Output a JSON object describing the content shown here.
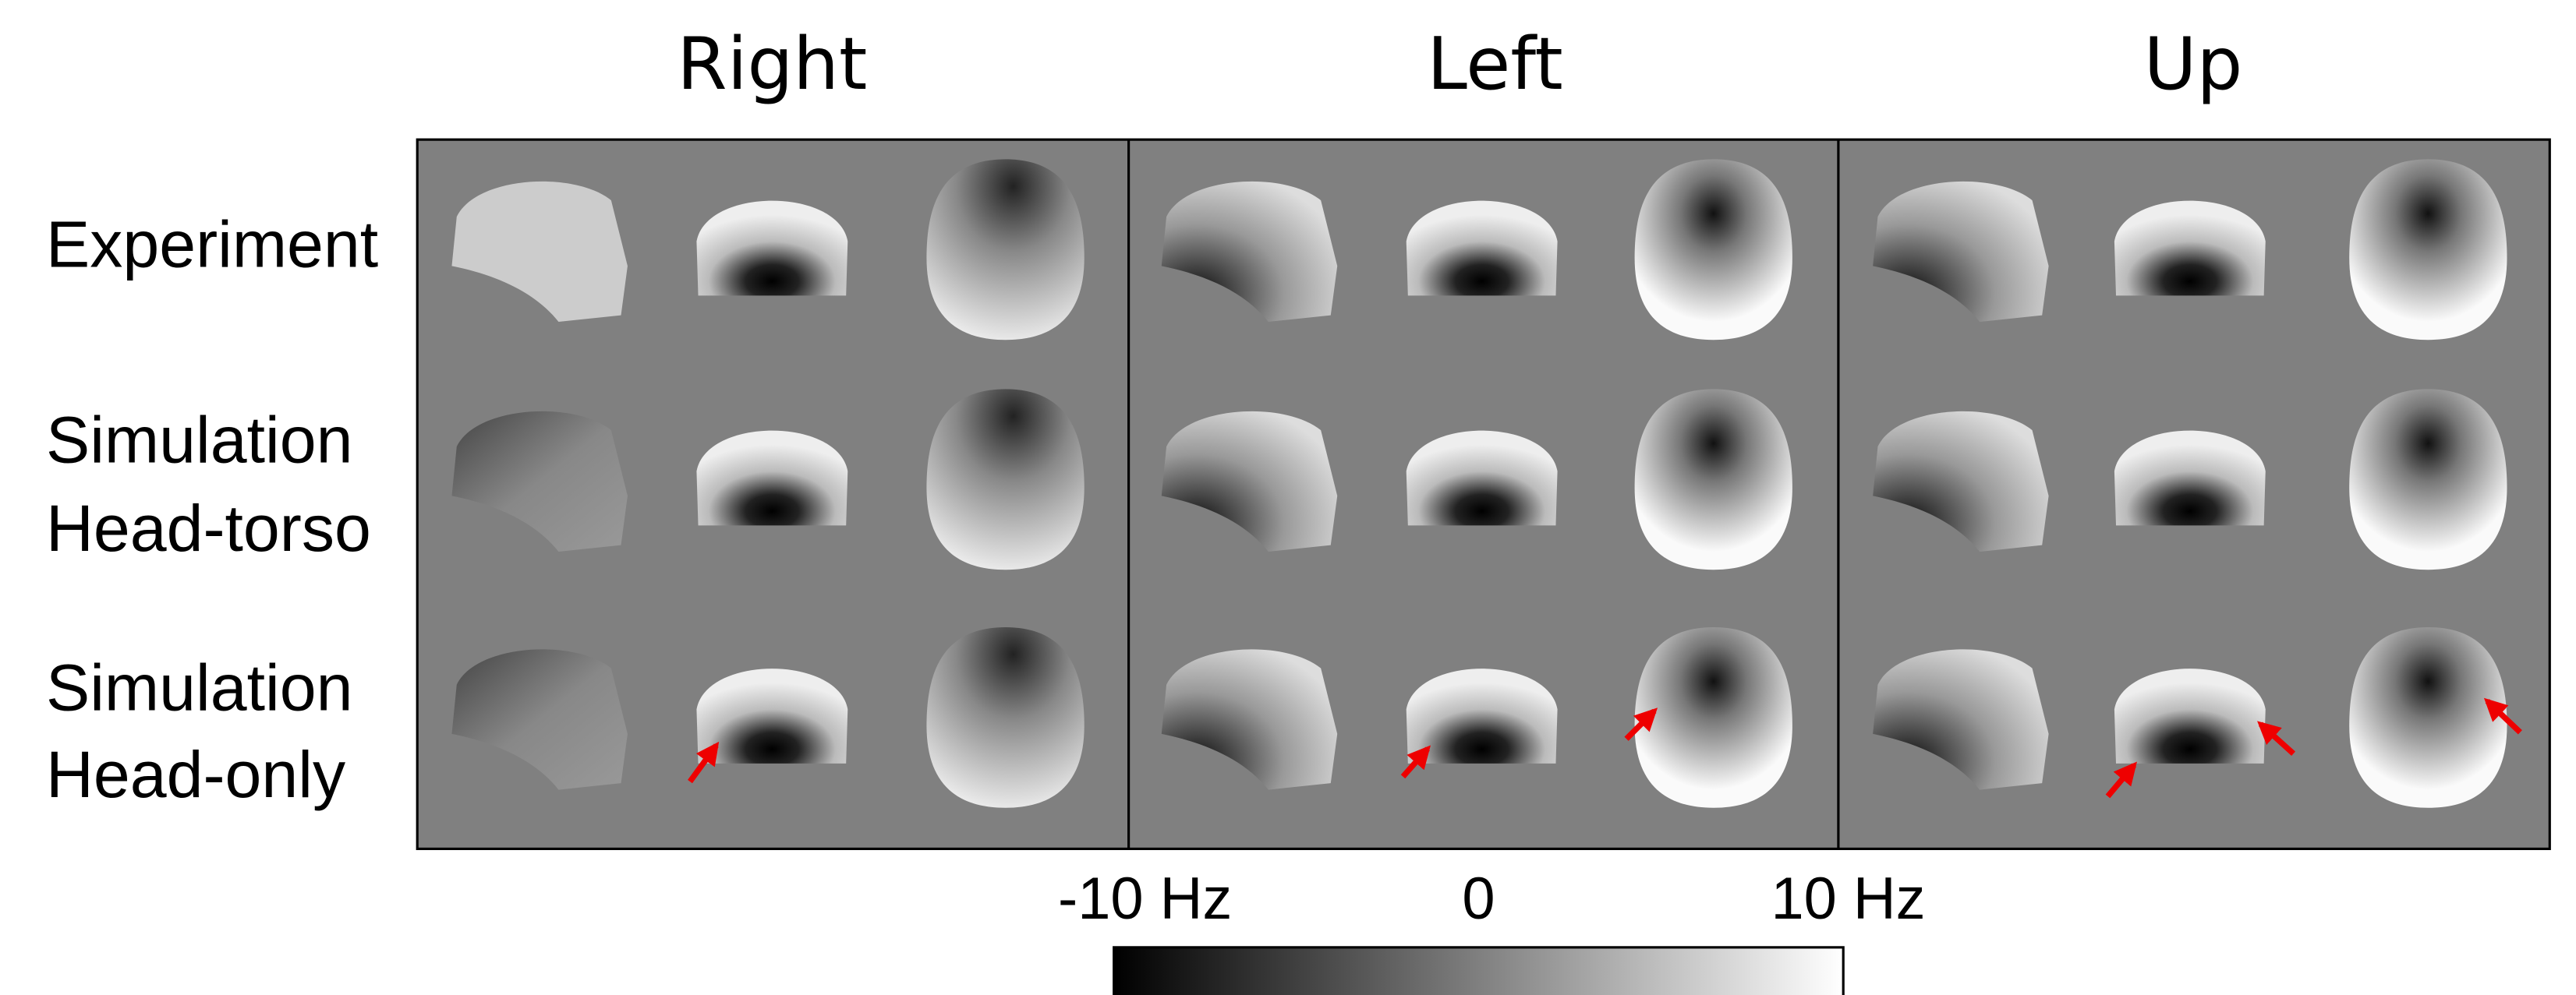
{
  "columns": [
    "Right",
    "Left",
    "Up"
  ],
  "rows": [
    [
      "Experiment"
    ],
    [
      "Simulation",
      "Head-torso"
    ],
    [
      "Simulation",
      "Head-only"
    ]
  ],
  "colorbar": {
    "labels": [
      "-10 Hz",
      "0",
      "10 Hz"
    ]
  }
}
